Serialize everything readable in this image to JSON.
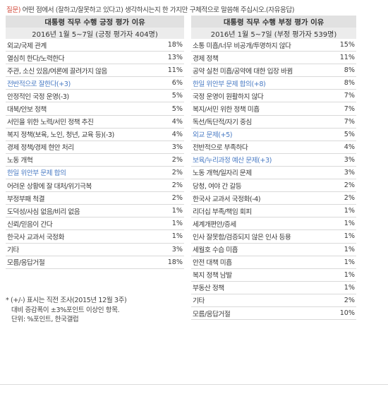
{
  "question": {
    "prefix": "질문)",
    "text": " 어떤 점에서 (잘하고/잘못하고 있다고) 생각하시는지 한 가지만 구체적으로 말씀해 주십시오.(자유응답)"
  },
  "positive": {
    "title": "대통령 직무 수행 긍정 평가 이유",
    "subtitle": "2016년 1월 5~7일 (긍정 평가자 404명)",
    "rows": [
      {
        "label": "외교/국제 관계",
        "value": "18%",
        "highlight": false
      },
      {
        "label": "열심히 한다/노력한다",
        "value": "13%",
        "highlight": false
      },
      {
        "label": "주관, 소신 있음/여론에 끌려가지 않음",
        "value": "11%",
        "highlight": false
      },
      {
        "label": "전반적으로 잘한다(+3)",
        "value": "6%",
        "highlight": true
      },
      {
        "label": "안정적인 국정 운영(-3)",
        "value": "5%",
        "highlight": false
      },
      {
        "label": "대북/안보 정책",
        "value": "5%",
        "highlight": false
      },
      {
        "label": "서민을 위한 노력/서민 정책 추진",
        "value": "4%",
        "highlight": false
      },
      {
        "label": "복지 정책(보육, 노인, 청년, 교육 등)(-3)",
        "value": "4%",
        "highlight": false
      },
      {
        "label": "경제 정책/경제 현안 처리",
        "value": "3%",
        "highlight": false
      },
      {
        "label": "노동 개혁",
        "value": "2%",
        "highlight": false
      },
      {
        "label": "한일 위안부 문제 합의",
        "value": "2%",
        "highlight": true
      },
      {
        "label": "어려운 상황에 잘 대처/위기극복",
        "value": "2%",
        "highlight": false
      },
      {
        "label": "부정부패 척결",
        "value": "2%",
        "highlight": false
      },
      {
        "label": "도덕성/사심 없음/비리 없음",
        "value": "1%",
        "highlight": false
      },
      {
        "label": "신뢰/믿음이 간다",
        "value": "1%",
        "highlight": false
      },
      {
        "label": "한국사 교과서 국정화",
        "value": "1%",
        "highlight": false
      },
      {
        "label": "기타",
        "value": "3%",
        "highlight": false
      },
      {
        "label": "모름/응답거절",
        "value": "18%",
        "highlight": false
      }
    ]
  },
  "negative": {
    "title": "대통령 직무 수행 부정 평가 이유",
    "subtitle": "2016년 1월 5~7일 (부정 평가자 539명)",
    "rows": [
      {
        "label": "소통 미흡/너무 비공개/투명하지 않다",
        "value": "15%",
        "highlight": false
      },
      {
        "label": "경제 정책",
        "value": "11%",
        "highlight": false
      },
      {
        "label": "공약 실천 미흡/공약에 대한 입장 바뀜",
        "value": "8%",
        "highlight": false
      },
      {
        "label": "한일 위안부 문제 합의(+8)",
        "value": "8%",
        "highlight": true
      },
      {
        "label": "국정 운영이 원활하지 않다",
        "value": "7%",
        "highlight": false
      },
      {
        "label": "복지/서민 위한 정책 미흡",
        "value": "7%",
        "highlight": false
      },
      {
        "label": "독선/독단적/자기 중심",
        "value": "7%",
        "highlight": false
      },
      {
        "label": "외교 문제(+5)",
        "value": "5%",
        "highlight": true
      },
      {
        "label": "전반적으로 부족하다",
        "value": "4%",
        "highlight": false
      },
      {
        "label": "보육/누리과정 예산 문제(+3)",
        "value": "3%",
        "highlight": true
      },
      {
        "label": "노동 개혁/일자리 문제",
        "value": "3%",
        "highlight": false
      },
      {
        "label": "당청, 여야 간 갈등",
        "value": "2%",
        "highlight": false
      },
      {
        "label": "한국사 교과서 국정화(-4)",
        "value": "2%",
        "highlight": false
      },
      {
        "label": "리더십 부족/책임 회피",
        "value": "1%",
        "highlight": false
      },
      {
        "label": "세계개편안/증세",
        "value": "1%",
        "highlight": false
      },
      {
        "label": "인사 잘못함/검증되지 않은 인사 등용",
        "value": "1%",
        "highlight": false
      },
      {
        "label": "세월호 수습 미흡",
        "value": "1%",
        "highlight": false
      },
      {
        "label": "안전 대책 미흡",
        "value": "1%",
        "highlight": false
      },
      {
        "label": "복지 정책 남발",
        "value": "1%",
        "highlight": false
      },
      {
        "label": "부동산 정책",
        "value": "1%",
        "highlight": false
      },
      {
        "label": "기타",
        "value": "2%",
        "highlight": false
      },
      {
        "label": "모름/응답거절",
        "value": "10%",
        "highlight": false
      }
    ]
  },
  "footnote": {
    "line1": "* (+/-) 표시는 직전 조사(2015년 12월 3주)",
    "line2": "대비 증감폭이 ±3%포인트 이상인 항목.",
    "line3": "단위: %포인트, 한국갤럽"
  }
}
